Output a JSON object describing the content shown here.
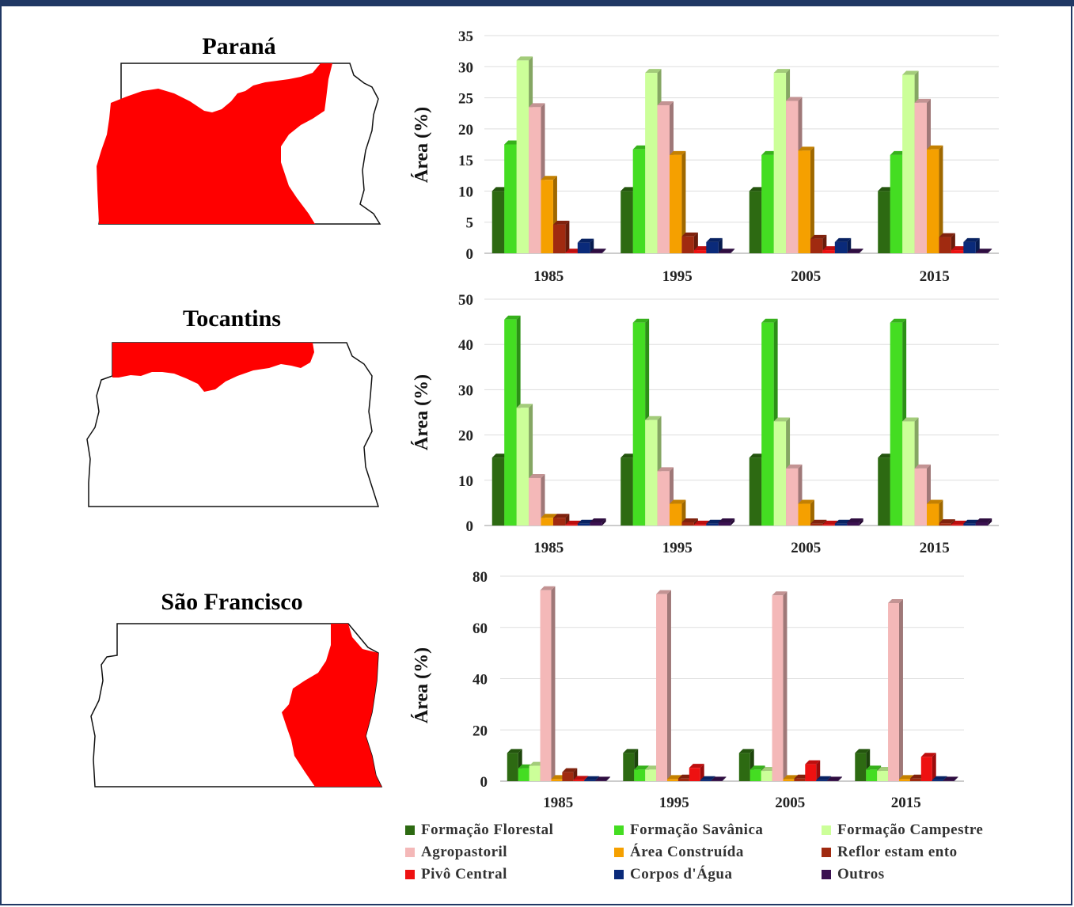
{
  "regions": [
    {
      "name": "Paraná"
    },
    {
      "name": "Tocantins"
    },
    {
      "name": "São Francisco"
    }
  ],
  "colors": {
    "map_fill": "#ff0000",
    "frame": "#203864"
  },
  "legend": [
    {
      "label": "Formação Florestal",
      "color": "#2d6a12"
    },
    {
      "label": "Formação Savânica",
      "color": "#44dd22"
    },
    {
      "label": "Formação Campestre",
      "color": "#ccff99"
    },
    {
      "label": "Agropastoril",
      "color": "#f4b8b8"
    },
    {
      "label": "Área Construída",
      "color": "#f5a000"
    },
    {
      "label": "Reflor estam ento",
      "color": "#a02a10"
    },
    {
      "label": "Pivô Central",
      "color": "#ee1111"
    },
    {
      "label": "Corpos d'Água",
      "color": "#0a2a7a"
    },
    {
      "label": "Outros",
      "color": "#3a1050"
    }
  ],
  "chart_data": [
    {
      "type": "bar",
      "region": "Paraná",
      "ylabel": "Área (%)",
      "ylim": [
        0,
        35
      ],
      "yticks": [
        0,
        5,
        10,
        15,
        20,
        25,
        30,
        35
      ],
      "categories": [
        "1985",
        "1995",
        "2005",
        "2015"
      ],
      "series": [
        {
          "name": "Formação Florestal",
          "values": [
            10,
            10,
            10,
            10
          ]
        },
        {
          "name": "Formação Savânica",
          "values": [
            17.5,
            16.7,
            15.8,
            15.8
          ]
        },
        {
          "name": "Formação Campestre",
          "values": [
            31,
            29,
            29,
            28.7
          ]
        },
        {
          "name": "Agropastoril",
          "values": [
            23.5,
            23.8,
            24.5,
            24.2
          ]
        },
        {
          "name": "Área Construída",
          "values": [
            11.8,
            15.8,
            16.5,
            16.7
          ]
        },
        {
          "name": "Reflor estam ento",
          "values": [
            4.6,
            2.7,
            2.3,
            2.6
          ]
        },
        {
          "name": "Pivô Central",
          "values": [
            0.1,
            0.5,
            0.5,
            0.5
          ]
        },
        {
          "name": "Corpos d'Água",
          "values": [
            1.7,
            1.8,
            1.8,
            1.8
          ]
        },
        {
          "name": "Outros",
          "values": [
            0.1,
            0.1,
            0.1,
            0.1
          ]
        }
      ]
    },
    {
      "type": "bar",
      "region": "Tocantins",
      "ylabel": "Área (%)",
      "ylim": [
        0,
        50
      ],
      "yticks": [
        0,
        10,
        20,
        30,
        40,
        50
      ],
      "categories": [
        "1985",
        "1995",
        "2005",
        "2015"
      ],
      "series": [
        {
          "name": "Formação Florestal",
          "values": [
            15,
            15,
            15,
            15
          ]
        },
        {
          "name": "Formação Savânica",
          "values": [
            45.5,
            44.8,
            44.8,
            44.8
          ]
        },
        {
          "name": "Formação Campestre",
          "values": [
            26,
            23.3,
            23,
            23
          ]
        },
        {
          "name": "Agropastoril",
          "values": [
            10.5,
            12,
            12.6,
            12.6
          ]
        },
        {
          "name": "Área Construída",
          "values": [
            1.7,
            4.8,
            4.8,
            4.8
          ]
        },
        {
          "name": "Reflor estam ento",
          "values": [
            1.7,
            0.7,
            0.4,
            0.5
          ]
        },
        {
          "name": "Pivô Central",
          "values": [
            0.2,
            0.2,
            0.2,
            0.2
          ]
        },
        {
          "name": "Corpos d'Água",
          "values": [
            0.4,
            0.4,
            0.4,
            0.4
          ]
        },
        {
          "name": "Outros",
          "values": [
            0.7,
            0.7,
            0.7,
            0.7
          ]
        }
      ]
    },
    {
      "type": "bar",
      "region": "São Francisco",
      "ylabel": "Área (%)",
      "ylim": [
        0,
        80
      ],
      "yticks": [
        0,
        20,
        40,
        60,
        80
      ],
      "categories": [
        "1985",
        "1995",
        "2005",
        "2015"
      ],
      "series": [
        {
          "name": "Formação Florestal",
          "values": [
            11,
            11,
            11,
            11
          ]
        },
        {
          "name": "Formação Savânica",
          "values": [
            5,
            4.5,
            4.5,
            4.5
          ]
        },
        {
          "name": "Formação Campestre",
          "values": [
            6,
            4.5,
            4,
            4
          ]
        },
        {
          "name": "Agropastoril",
          "values": [
            74.5,
            73,
            72.5,
            69.5
          ]
        },
        {
          "name": "Área Construída",
          "values": [
            0.8,
            0.8,
            0.8,
            0.8
          ]
        },
        {
          "name": "Reflor estam ento",
          "values": [
            3.5,
            1,
            1,
            1
          ]
        },
        {
          "name": "Pivô Central",
          "values": [
            0.5,
            5.2,
            6.6,
            9.5
          ]
        },
        {
          "name": "Corpos d'Água",
          "values": [
            0.4,
            0.4,
            0.4,
            0.4
          ]
        },
        {
          "name": "Outros",
          "values": [
            0.2,
            0.2,
            0.2,
            0.2
          ]
        }
      ]
    }
  ]
}
